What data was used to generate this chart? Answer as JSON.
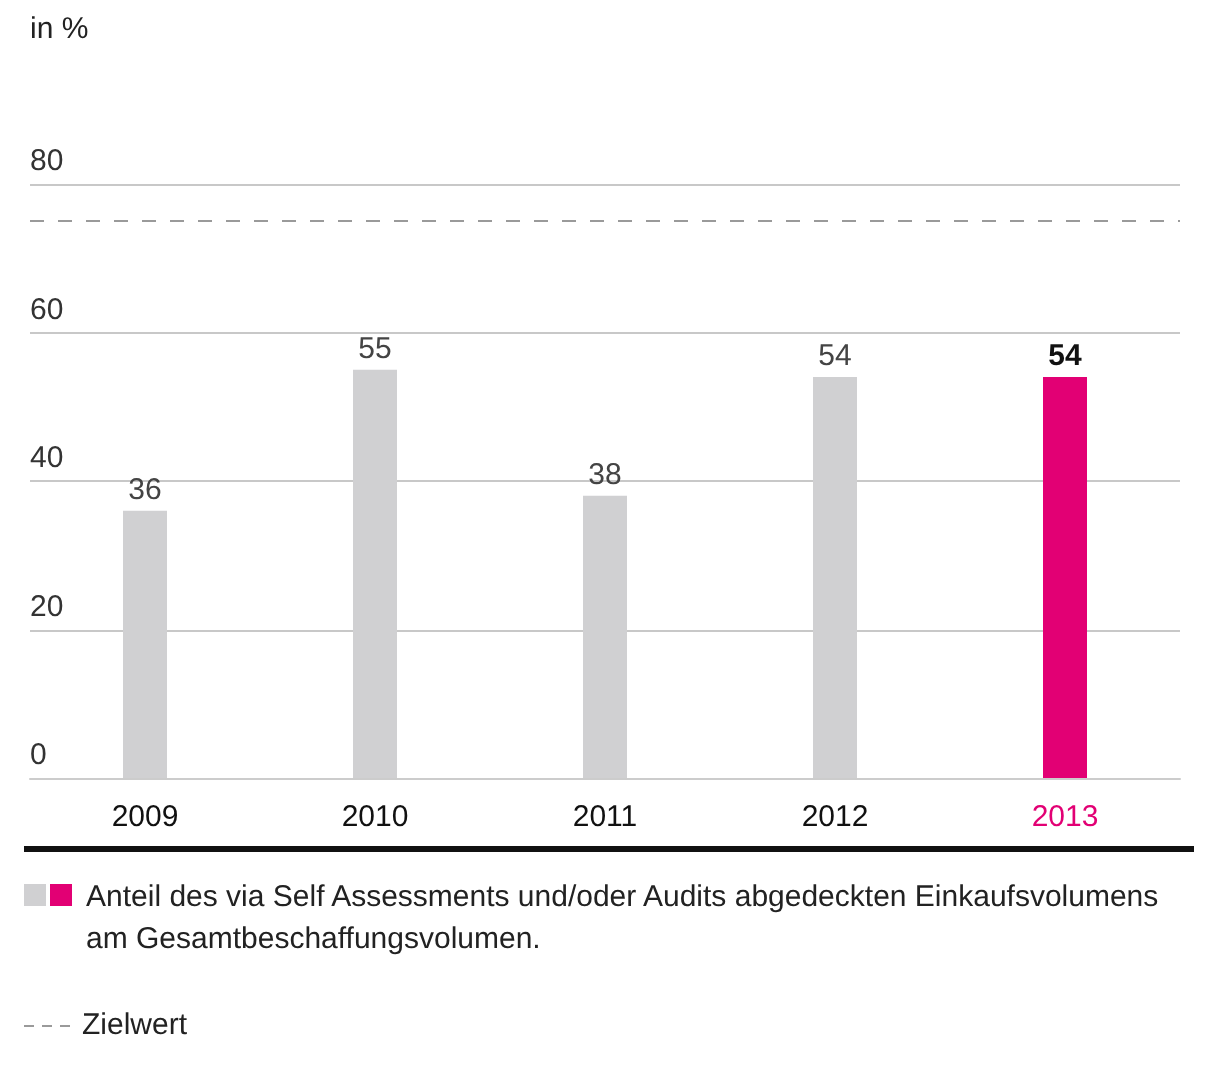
{
  "chart_data": {
    "type": "bar",
    "ylabel": "in %",
    "categories": [
      "2009",
      "2010",
      "2011",
      "2012",
      "2013"
    ],
    "series": [
      {
        "name": "Anteil des via Self Assessments und/oder Audits abgedeckten Einkaufsvolumens am Gesamtbeschaffungsvolumen.",
        "values": [
          36,
          55,
          38,
          54,
          54
        ],
        "colors": [
          "#d0d0d2",
          "#d0d0d2",
          "#d0d0d2",
          "#d0d0d2",
          "#e20074"
        ]
      }
    ],
    "ylim": [
      0,
      80
    ],
    "yticks": [
      0,
      20,
      40,
      60,
      80
    ],
    "grid": "y",
    "data_labels": true,
    "legend": "bottom",
    "ref_lines": [
      {
        "axis": "y",
        "value": 75,
        "label": "Zielwert",
        "color": "#9a9a9a",
        "line_style": "dashed"
      }
    ]
  }
}
